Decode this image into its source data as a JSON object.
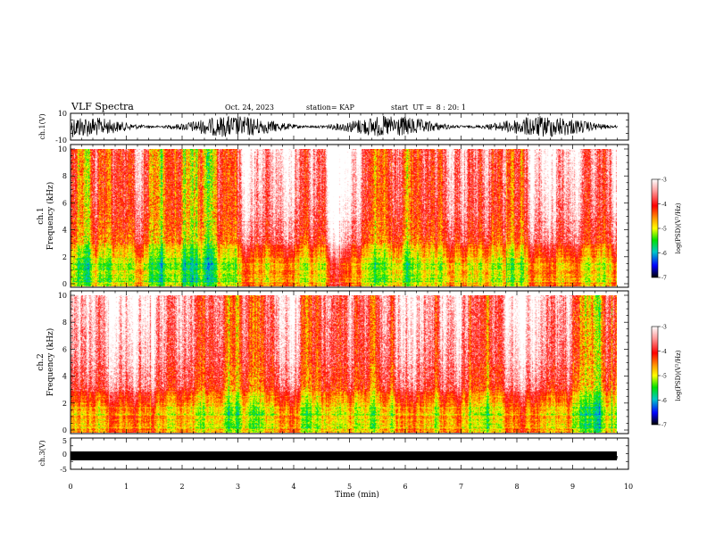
{
  "header": {
    "title": "VLF Spectra",
    "date": "Oct. 24, 2023",
    "station": "station= KAP",
    "start_ut": "start  UT =  8 : 20: 1"
  },
  "chart_data": [
    {
      "type": "line",
      "panel": "waveform",
      "ylabel": "ch.1(V)",
      "ylim": [
        -10,
        10
      ],
      "yticks": [
        "10",
        "-10"
      ],
      "xlim": [
        0,
        10
      ]
    },
    {
      "type": "heatmap",
      "panel": "spectrogram",
      "ylabel": "ch.1 Frequency (kHz)",
      "ylim": [
        0,
        10
      ],
      "yticks": [
        "0",
        "2",
        "4",
        "6",
        "8",
        "10"
      ],
      "xlim": [
        0,
        10
      ],
      "data_end_min": 9.8,
      "colorbar": {
        "label": "log(PSD)(V²/Hz)",
        "range": [
          -7,
          -3
        ],
        "ticks": [
          "-3",
          "-4",
          "-5",
          "-6",
          "-7"
        ]
      }
    },
    {
      "type": "heatmap",
      "panel": "spectrogram",
      "ylabel": "ch.2 Frequency (kHz)",
      "ylim": [
        0,
        10
      ],
      "yticks": [
        "0",
        "2",
        "4",
        "6",
        "8",
        "10"
      ],
      "xlim": [
        0,
        10
      ],
      "data_end_min": 9.8,
      "colorbar": {
        "label": "log(PSD)(V²/Hz)",
        "range": [
          -7,
          -3
        ],
        "ticks": [
          "-3",
          "-4",
          "-5",
          "-6",
          "-7"
        ]
      }
    },
    {
      "type": "line",
      "panel": "waveform",
      "ylabel": "ch.3(V)",
      "ylim": [
        -5,
        5
      ],
      "yticks": [
        "5",
        "0",
        "-5"
      ],
      "xlim": [
        0,
        10
      ],
      "xlabel": "Time (min)",
      "xticks": [
        "0",
        "1",
        "2",
        "3",
        "4",
        "5",
        "6",
        "7",
        "8",
        "9",
        "10"
      ]
    }
  ]
}
